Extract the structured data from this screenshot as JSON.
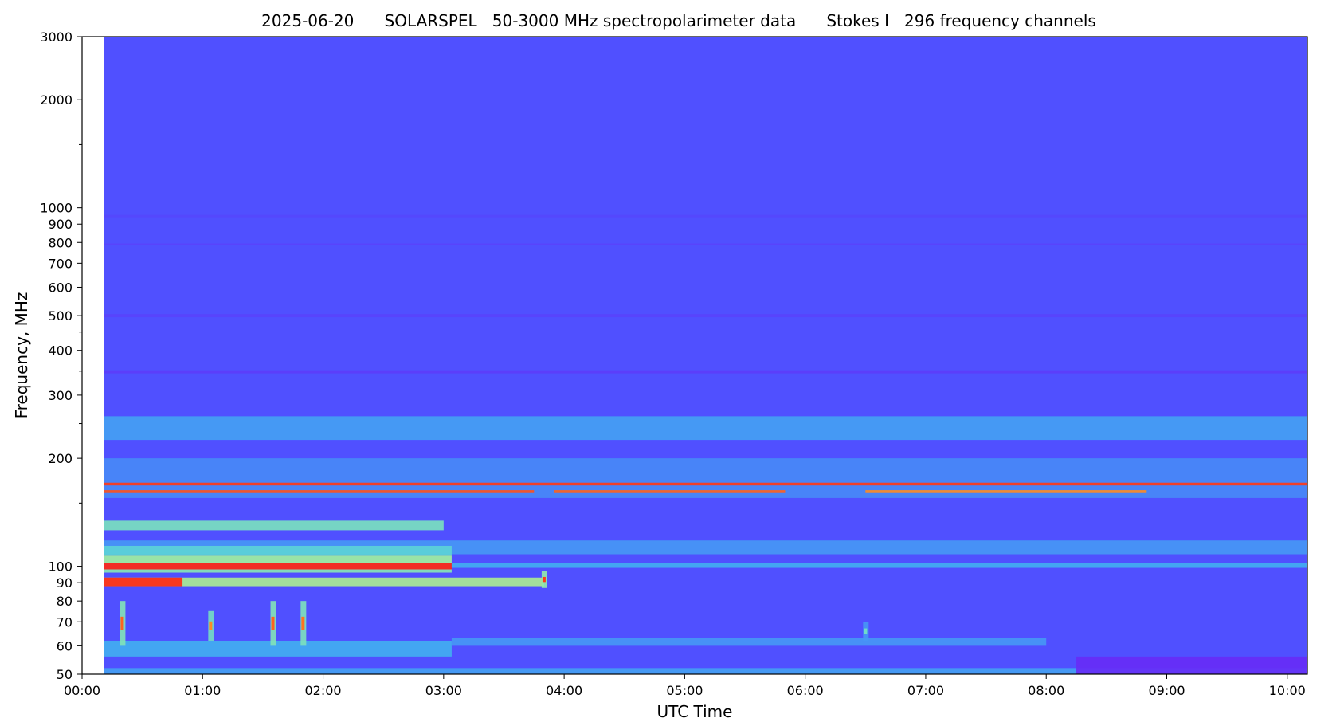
{
  "chart_data": {
    "type": "heatmap",
    "title": "2025-06-20      SOLARSPEL   50-3000 MHz spectropolarimeter data      Stokes I   296 frequency channels",
    "xlabel": "UTC Time",
    "ylabel": "Frequency, MHz",
    "x_scale": "time",
    "y_scale": "log",
    "xlim": [
      "00:00",
      "10:10"
    ],
    "ylim": [
      50,
      3000
    ],
    "data_start": "00:11",
    "x_ticks": [
      "00:00",
      "01:00",
      "02:00",
      "03:00",
      "04:00",
      "05:00",
      "06:00",
      "07:00",
      "08:00",
      "09:00",
      "10:00"
    ],
    "y_ticks_major": [
      {
        "value": 50,
        "label": "50"
      },
      {
        "value": 60,
        "label": "60"
      },
      {
        "value": 70,
        "label": "70"
      },
      {
        "value": 80,
        "label": "80"
      },
      {
        "value": 90,
        "label": "90"
      },
      {
        "value": 100,
        "label": "100"
      },
      {
        "value": 200,
        "label": "200"
      },
      {
        "value": 300,
        "label": "300"
      },
      {
        "value": 400,
        "label": "400"
      },
      {
        "value": 500,
        "label": "500"
      },
      {
        "value": 600,
        "label": "600"
      },
      {
        "value": 700,
        "label": "700"
      },
      {
        "value": 800,
        "label": "800"
      },
      {
        "value": 900,
        "label": "900"
      },
      {
        "value": 1000,
        "label": "1000"
      },
      {
        "value": 2000,
        "label": "2000"
      },
      {
        "value": 3000,
        "label": "3000"
      }
    ],
    "y_ticks_minor": [
      150,
      250,
      350,
      450,
      1500
    ],
    "colormap": "rainbow",
    "colors": {
      "background": "#5050ff",
      "low": "#6a28f5",
      "cyan": "#3fc6ee",
      "green": "#a0f0a0",
      "red": "#ff1010"
    },
    "grid": false,
    "legend": "none",
    "features": [
      {
        "kind": "band",
        "t0": "00:11",
        "t1": "10:10",
        "f0": 940,
        "f1": 955,
        "intensity": 0.12
      },
      {
        "kind": "band",
        "t0": "00:11",
        "t1": "10:10",
        "f0": 785,
        "f1": 795,
        "intensity": 0.1
      },
      {
        "kind": "band",
        "t0": "00:11",
        "t1": "10:10",
        "f0": 495,
        "f1": 505,
        "intensity": 0.1
      },
      {
        "kind": "band",
        "t0": "00:11",
        "t1": "10:10",
        "f0": 345,
        "f1": 352,
        "intensity": 0.08
      },
      {
        "kind": "band",
        "t0": "00:11",
        "t1": "10:10",
        "f0": 225,
        "f1": 262,
        "intensity": 0.32
      },
      {
        "kind": "band",
        "t0": "00:11",
        "t1": "10:10",
        "f0": 155,
        "f1": 200,
        "intensity": 0.27
      },
      {
        "kind": "band",
        "t0": "00:11",
        "t1": "10:10",
        "f0": 168,
        "f1": 171,
        "intensity": 0.95
      },
      {
        "kind": "band",
        "t0": "00:11",
        "t1": "03:45",
        "f0": 160,
        "f1": 163,
        "intensity": 0.92
      },
      {
        "kind": "band",
        "t0": "03:55",
        "t1": "05:50",
        "f0": 160,
        "f1": 163,
        "intensity": 0.9
      },
      {
        "kind": "band",
        "t0": "06:30",
        "t1": "08:50",
        "f0": 160,
        "f1": 163,
        "intensity": 0.85
      },
      {
        "kind": "band",
        "t0": "00:11",
        "t1": "03:00",
        "f0": 126,
        "f1": 134,
        "intensity": 0.52
      },
      {
        "kind": "band",
        "t0": "00:11",
        "t1": "10:10",
        "f0": 108,
        "f1": 118,
        "intensity": 0.3
      },
      {
        "kind": "band",
        "t0": "00:11",
        "t1": "03:04",
        "f0": 107,
        "f1": 114,
        "intensity": 0.46
      },
      {
        "kind": "band",
        "t0": "00:11",
        "t1": "03:04",
        "f0": 102,
        "f1": 107,
        "intensity": 0.6
      },
      {
        "kind": "band",
        "t0": "00:11",
        "t1": "03:04",
        "f0": 98,
        "f1": 102,
        "intensity": 0.97
      },
      {
        "kind": "band",
        "t0": "00:11",
        "t1": "03:04",
        "f0": 96,
        "f1": 98,
        "intensity": 0.55
      },
      {
        "kind": "band",
        "t0": "03:04",
        "t1": "10:10",
        "f0": 99,
        "f1": 102,
        "intensity": 0.35
      },
      {
        "kind": "band",
        "t0": "00:11",
        "t1": "03:50",
        "f0": 88,
        "f1": 93,
        "intensity": 0.62
      },
      {
        "kind": "band",
        "t0": "00:11",
        "t1": "00:50",
        "f0": 88,
        "f1": 93,
        "intensity": 0.97
      },
      {
        "kind": "band",
        "t0": "00:11",
        "t1": "03:04",
        "f0": 56,
        "f1": 62,
        "intensity": 0.35
      },
      {
        "kind": "band",
        "t0": "03:04",
        "t1": "08:00",
        "f0": 60,
        "f1": 63,
        "intensity": 0.3
      },
      {
        "kind": "band",
        "t0": "00:11",
        "t1": "10:10",
        "f0": 50,
        "f1": 52,
        "intensity": 0.32
      },
      {
        "kind": "band",
        "t0": "08:15",
        "t1": "10:10",
        "f0": 50,
        "f1": 56,
        "intensity": 0.02
      },
      {
        "kind": "burst",
        "t": "00:20",
        "f0": 60,
        "f1": 80,
        "intensity": 0.9
      },
      {
        "kind": "burst",
        "t": "01:04",
        "f0": 62,
        "f1": 75,
        "intensity": 0.85
      },
      {
        "kind": "burst",
        "t": "01:35",
        "f0": 60,
        "f1": 80,
        "intensity": 0.9
      },
      {
        "kind": "burst",
        "t": "01:50",
        "f0": 60,
        "f1": 80,
        "intensity": 0.88
      },
      {
        "kind": "burst",
        "t": "03:50",
        "f0": 87,
        "f1": 97,
        "intensity": 0.95
      },
      {
        "kind": "burst",
        "t": "06:30",
        "f0": 62,
        "f1": 70,
        "intensity": 0.5
      }
    ]
  }
}
